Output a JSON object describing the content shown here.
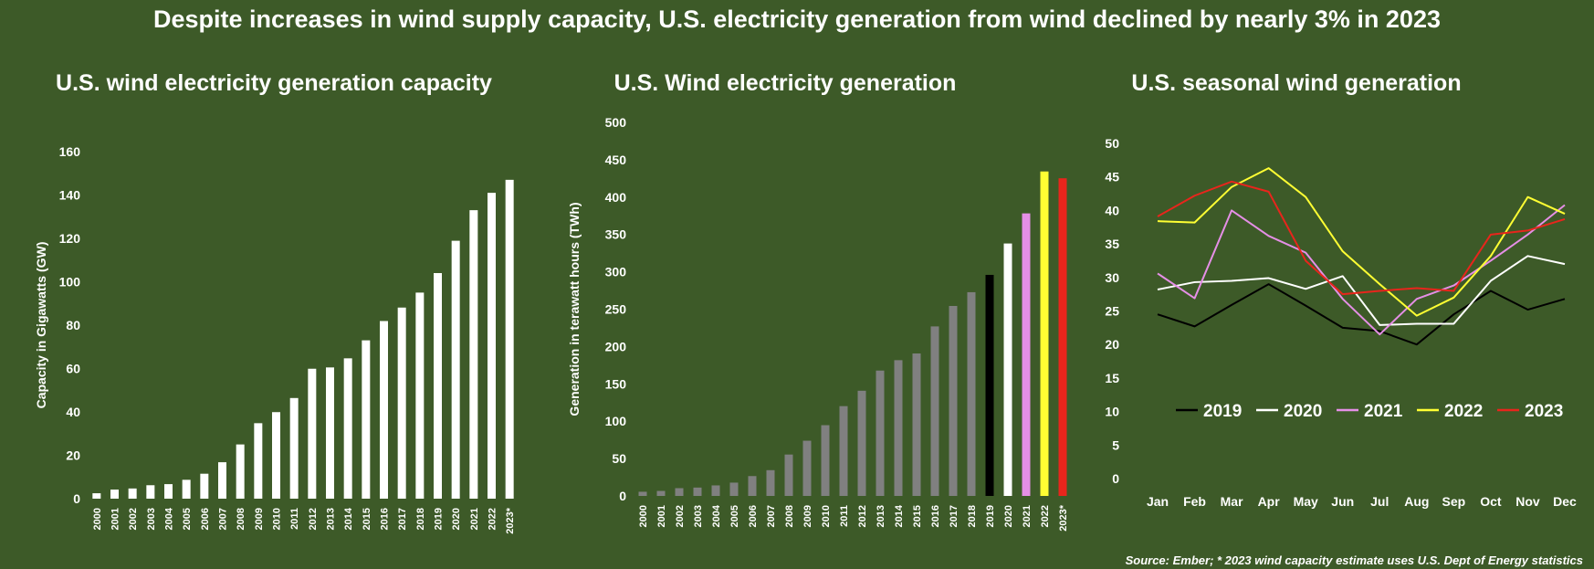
{
  "page": {
    "title": "Despite increases in wind supply capacity, U.S. electricity generation from wind declined by nearly 3% in 2023",
    "source": "Source: Ember; * 2023 wind capacity estimate uses U.S. Dept of Energy statistics"
  },
  "colors": {
    "background": "#3d5a28",
    "bar_white": "#ffffff",
    "bar_grey": "#808080",
    "black": "#000000",
    "pink": "#e58fe6",
    "yellow": "#ffff33",
    "red": "#e8251c"
  },
  "chart_data": [
    {
      "type": "bar",
      "title": "U.S. wind electricity generation capacity",
      "ylabel": "Capacity in Gigawatts (GW)",
      "xlabel": "",
      "ylim": [
        0,
        160
      ],
      "yticks": [
        0,
        20,
        40,
        60,
        80,
        100,
        120,
        140,
        160
      ],
      "categories": [
        "2000",
        "2001",
        "2002",
        "2003",
        "2004",
        "2005",
        "2006",
        "2007",
        "2008",
        "2009",
        "2010",
        "2011",
        "2012",
        "2013",
        "2014",
        "2015",
        "2016",
        "2017",
        "2018",
        "2019",
        "2020",
        "2021",
        "2022",
        "2023*"
      ],
      "values": [
        2.5,
        4.2,
        4.7,
        6.2,
        6.7,
        8.7,
        11.5,
        16.8,
        25.0,
        34.8,
        39.9,
        46.4,
        59.9,
        60.5,
        64.7,
        73.0,
        81.9,
        88.1,
        95.0,
        104.0,
        118.9,
        133.0,
        141.0,
        147.0
      ],
      "grid": false
    },
    {
      "type": "bar",
      "title": "U.S. Wind electricity generation",
      "ylabel": "Generation in terawatt hours (TWh)",
      "xlabel": "",
      "ylim": [
        0,
        500
      ],
      "yticks": [
        0,
        50,
        100,
        150,
        200,
        250,
        300,
        350,
        400,
        450,
        500
      ],
      "categories": [
        "2000",
        "2001",
        "2002",
        "2003",
        "2004",
        "2005",
        "2006",
        "2007",
        "2008",
        "2009",
        "2010",
        "2011",
        "2012",
        "2013",
        "2014",
        "2015",
        "2016",
        "2017",
        "2018",
        "2019",
        "2020",
        "2021",
        "2022",
        "2023*"
      ],
      "values": [
        5.6,
        6.7,
        10.4,
        11.2,
        14.1,
        17.8,
        26.6,
        34.5,
        55.4,
        73.9,
        94.7,
        120.2,
        140.8,
        167.8,
        181.7,
        190.7,
        226.9,
        254.3,
        272.7,
        295.9,
        337.9,
        378.2,
        434.3,
        425.2
      ],
      "bar_colors": [
        "#808080",
        "#808080",
        "#808080",
        "#808080",
        "#808080",
        "#808080",
        "#808080",
        "#808080",
        "#808080",
        "#808080",
        "#808080",
        "#808080",
        "#808080",
        "#808080",
        "#808080",
        "#808080",
        "#808080",
        "#808080",
        "#808080",
        "#000000",
        "#ffffff",
        "#e58fe6",
        "#ffff33",
        "#e8251c"
      ],
      "grid": false
    },
    {
      "type": "line",
      "title": "U.S. seasonal wind generation",
      "xlabel": "",
      "ylabel": "",
      "ylim": [
        0,
        50
      ],
      "yticks": [
        0,
        5,
        10,
        15,
        20,
        25,
        30,
        35,
        40,
        45,
        50
      ],
      "categories": [
        "Jan",
        "Feb",
        "Mar",
        "Apr",
        "May",
        "Jun",
        "Jul",
        "Aug",
        "Sep",
        "Oct",
        "Nov",
        "Dec"
      ],
      "legend_position": "bottom-inside",
      "series": [
        {
          "name": "2019",
          "color": "#000000",
          "values": [
            24.5,
            22.7,
            25.9,
            29.0,
            25.8,
            22.5,
            22.0,
            20.0,
            24.5,
            28.0,
            25.2,
            26.8
          ]
        },
        {
          "name": "2020",
          "color": "#ffffff",
          "values": [
            28.2,
            29.3,
            29.5,
            29.9,
            28.3,
            30.2,
            22.9,
            23.1,
            23.1,
            29.5,
            33.2,
            32.0
          ]
        },
        {
          "name": "2021",
          "color": "#e58fe6",
          "values": [
            30.6,
            26.9,
            40.0,
            36.2,
            33.7,
            26.8,
            21.5,
            26.8,
            28.8,
            32.5,
            36.4,
            40.8
          ]
        },
        {
          "name": "2022",
          "color": "#ffff33",
          "values": [
            38.4,
            38.2,
            43.5,
            46.3,
            42.0,
            33.9,
            29.0,
            24.3,
            27.0,
            33.2,
            42.0,
            39.5
          ]
        },
        {
          "name": "2023",
          "color": "#e8251c",
          "values": [
            39.1,
            42.2,
            44.3,
            42.8,
            32.5,
            27.5,
            28.0,
            28.4,
            28.0,
            36.4,
            37.0,
            38.7
          ]
        }
      ],
      "grid": false
    }
  ]
}
